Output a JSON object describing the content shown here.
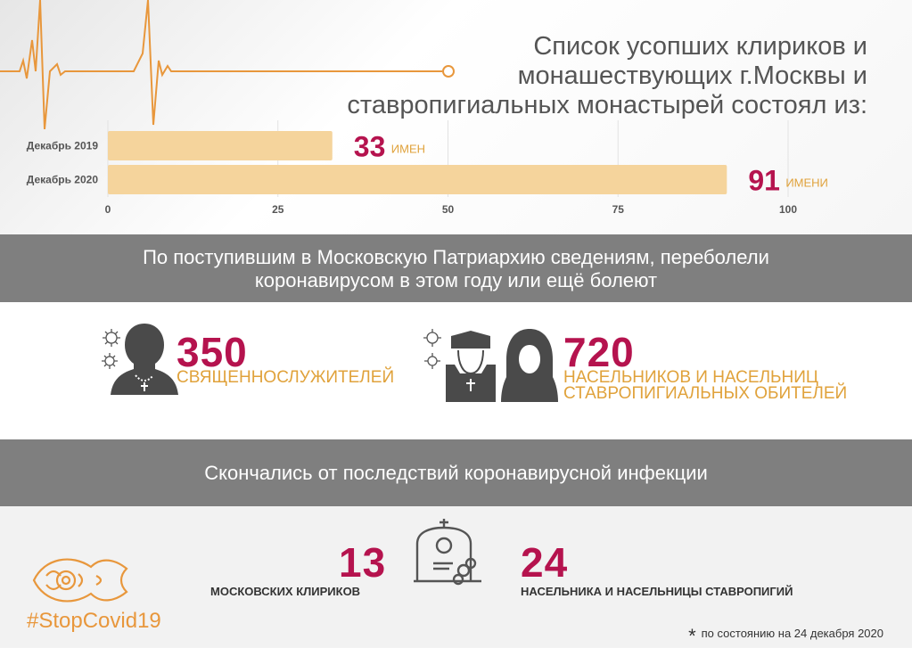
{
  "title_lines": [
    "Список усопших клириков и",
    "монашествующих г.Москвы и",
    "ставропигиальных монастырей состоял из:"
  ],
  "chart_data": {
    "type": "bar",
    "orientation": "horizontal",
    "categories": [
      "Декабрь 2019",
      "Декабрь 2020"
    ],
    "values": [
      33,
      91
    ],
    "value_units": [
      "ИМЕН",
      "ИМЕНИ"
    ],
    "xlim": [
      0,
      100
    ],
    "xticks": [
      0,
      25,
      50,
      75,
      100
    ],
    "bar_color": "#f5d49c",
    "value_color": "#b5134e",
    "unit_color": "#e0a23b"
  },
  "band1": {
    "line1": "По поступившим в Московскую Патриархию сведениям, переболели",
    "line2": "коронавирусом в этом году или ещё болеют"
  },
  "stat_clergy": {
    "number": "350",
    "label": "СВЯЩЕННОСЛУЖИТЕЛЕЙ"
  },
  "stat_monastics": {
    "number": "720",
    "label_line1": "НАСЕЛЬНИКОВ И НАСЕЛЬНИЦ",
    "label_line2": "СТАВРОПИГИАЛЬНЫХ ОБИТЕЛЕЙ"
  },
  "band2": {
    "text": "Скончались от последствий коронавирусной инфекции"
  },
  "died_clergy": {
    "number": "13",
    "label": "МОСКОВСКИХ КЛИРИКОВ"
  },
  "died_monastics": {
    "number": "24",
    "label": "НАСЕЛЬНИКА И НАСЕЛЬНИЦЫ СТАВРОПИГИЙ"
  },
  "hashtag": "#StopCovid19",
  "footnote": "по состоянию на 24 декабря 2020",
  "colors": {
    "accent": "#b5134e",
    "gold": "#e0a23b",
    "orange": "#e8973c",
    "band": "#7f7f7f"
  },
  "icons": [
    "virus-icon",
    "priest-icon",
    "nun-icon",
    "gravestone-icon",
    "ornament-fish-icon"
  ]
}
